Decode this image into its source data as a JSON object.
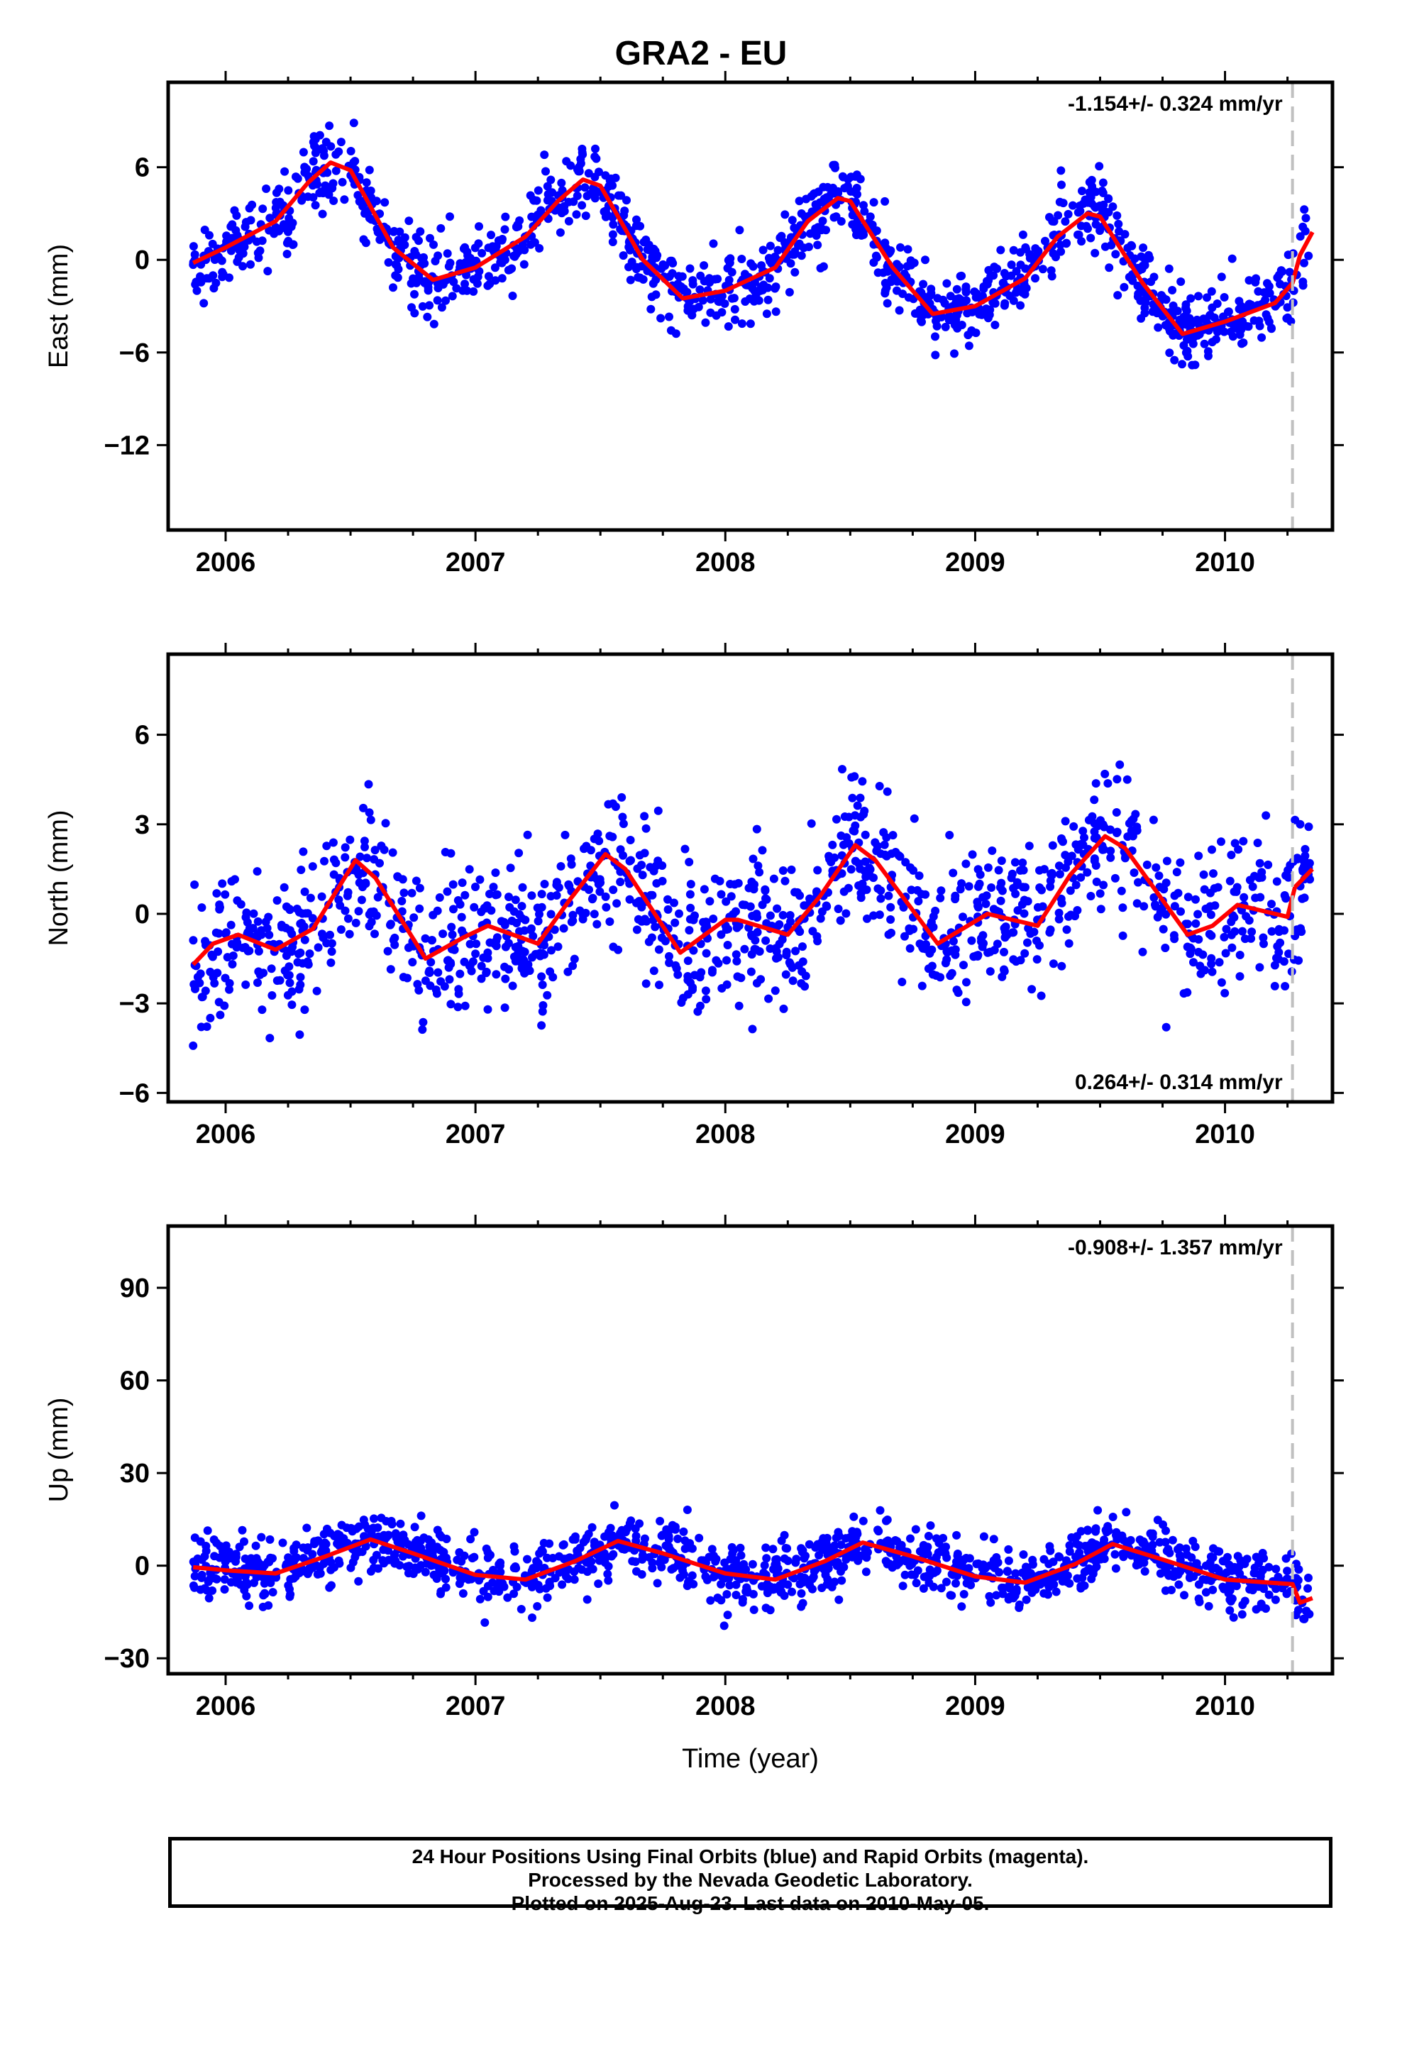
{
  "title": "GRA2 - EU",
  "xlabel": "Time (year)",
  "footer": {
    "line1": "24 Hour Positions Using Final Orbits (blue) and Rapid Orbits (magenta).",
    "line2": "Processed by the Nevada Geodetic Laboratory.",
    "line3": "Plotted on 2025-Aug-23. Last data on 2010-May-05."
  },
  "colors": {
    "points": "#0000ff",
    "model": "#ff0000",
    "marker": "#c0c0c0",
    "axis": "#000000"
  },
  "chart_data": [
    {
      "type": "scatter",
      "ylabel": "East (mm)",
      "rate": "-1.154+/- 0.324 mm/yr",
      "rate_position": "top-right",
      "xlim": [
        2005.77,
        2010.43
      ],
      "ylim": [
        -17.5,
        11.5
      ],
      "x_ticks": [
        2006,
        2007,
        2008,
        2009,
        2010
      ],
      "y_ticks": [
        6,
        0,
        -6,
        -12
      ],
      "y_tick_labels": [
        "6",
        "0",
        "−6",
        "−12"
      ],
      "marker_x": 2010.27,
      "model": {
        "x": [
          2005.87,
          2006.0,
          2006.2,
          2006.33,
          2006.42,
          2006.5,
          2006.67,
          2006.83,
          2007.0,
          2007.2,
          2007.33,
          2007.43,
          2007.5,
          2007.67,
          2007.83,
          2008.0,
          2008.2,
          2008.33,
          2008.45,
          2008.5,
          2008.67,
          2008.83,
          2009.0,
          2009.2,
          2009.33,
          2009.45,
          2009.5,
          2009.67,
          2009.83,
          2010.0,
          2010.2,
          2010.27,
          2010.3,
          2010.35
        ],
        "y": [
          -0.2,
          0.8,
          2.5,
          5.0,
          6.3,
          5.8,
          0.8,
          -1.3,
          -0.5,
          1.5,
          3.8,
          5.2,
          4.8,
          0.0,
          -2.5,
          -2.0,
          -0.5,
          2.5,
          4.0,
          3.8,
          -0.5,
          -3.5,
          -3.0,
          -1.2,
          1.5,
          3.0,
          2.8,
          -1.5,
          -4.8,
          -4.0,
          -2.8,
          -1.5,
          0.3,
          1.8
        ]
      },
      "samples": {
        "count": 1300,
        "amplitude": 4.2,
        "trend": -1.154,
        "offset": 1.6,
        "noise": 1.2
      }
    },
    {
      "type": "scatter",
      "ylabel": "North (mm)",
      "rate": "0.264+/- 0.314 mm/yr",
      "rate_position": "bottom-right",
      "xlim": [
        2005.77,
        2010.43
      ],
      "ylim": [
        -6.3,
        8.7
      ],
      "x_ticks": [
        2006,
        2007,
        2008,
        2009,
        2010
      ],
      "y_ticks": [
        6,
        3,
        0,
        -3,
        -6
      ],
      "y_tick_labels": [
        "6",
        "3",
        "0",
        "−3",
        "−6"
      ],
      "marker_x": 2010.27,
      "model": {
        "x": [
          2005.87,
          2005.95,
          2006.05,
          2006.2,
          2006.35,
          2006.52,
          2006.6,
          2006.8,
          2006.95,
          2007.05,
          2007.25,
          2007.38,
          2007.52,
          2007.6,
          2007.82,
          2008.0,
          2008.05,
          2008.25,
          2008.38,
          2008.52,
          2008.6,
          2008.85,
          2008.95,
          2009.05,
          2009.25,
          2009.38,
          2009.52,
          2009.6,
          2009.85,
          2009.95,
          2010.05,
          2010.25,
          2010.28,
          2010.35
        ],
        "y": [
          -1.7,
          -1.0,
          -0.7,
          -1.2,
          -0.5,
          1.8,
          1.2,
          -1.5,
          -0.8,
          -0.4,
          -1.0,
          0.5,
          2.0,
          1.5,
          -1.3,
          -0.2,
          -0.2,
          -0.7,
          0.6,
          2.3,
          1.8,
          -1.0,
          -0.5,
          0.0,
          -0.4,
          1.3,
          2.6,
          2.2,
          -0.7,
          -0.4,
          0.3,
          -0.1,
          0.9,
          1.5
        ]
      },
      "samples": {
        "count": 1300,
        "amplitude": 1.6,
        "trend": 0.264,
        "offset": -0.4,
        "noise": 1.2
      }
    },
    {
      "type": "scatter",
      "ylabel": "Up (mm)",
      "rate": "-0.908+/- 1.357 mm/yr",
      "rate_position": "top-right",
      "xlim": [
        2005.77,
        2010.43
      ],
      "ylim": [
        -35,
        110
      ],
      "x_ticks": [
        2006,
        2007,
        2008,
        2009,
        2010
      ],
      "y_ticks": [
        90,
        60,
        30,
        0,
        -30
      ],
      "y_tick_labels": [
        "90",
        "60",
        "30",
        "0",
        "−30"
      ],
      "marker_x": 2010.27,
      "model": {
        "x": [
          2005.87,
          2006.0,
          2006.2,
          2006.4,
          2006.58,
          2006.75,
          2007.0,
          2007.2,
          2007.4,
          2007.57,
          2007.75,
          2008.0,
          2008.2,
          2008.4,
          2008.55,
          2008.75,
          2009.0,
          2009.2,
          2009.4,
          2009.55,
          2009.75,
          2010.0,
          2010.27,
          2010.3,
          2010.35
        ],
        "y": [
          -0.5,
          -1.5,
          -2.5,
          3.0,
          8.5,
          4.0,
          -3.0,
          -4.5,
          1.5,
          8.0,
          4.0,
          -2.5,
          -4.5,
          1.5,
          7.5,
          3.0,
          -3.5,
          -5.5,
          0.5,
          7.0,
          2.0,
          -4.5,
          -6.0,
          -12.0,
          -10.5
        ]
      },
      "samples": {
        "count": 1300,
        "amplitude": 6.5,
        "trend": -0.908,
        "offset": 1.0,
        "noise": 5.0
      }
    }
  ]
}
